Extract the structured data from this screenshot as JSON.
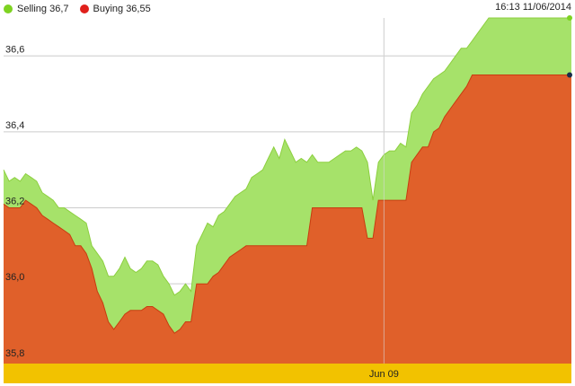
{
  "header": {
    "timestamp": "16:13 11/06/2014"
  },
  "legend": {
    "selling": {
      "label": "Selling 36,7",
      "color": "#7ed321"
    },
    "buying": {
      "label": "Buying 36,55",
      "color": "#e0201b"
    }
  },
  "colors": {
    "selling_fill": "#a6e26a",
    "selling_line": "#8ccf3f",
    "buying_fill": "#e0602a",
    "buying_line": "#c83c10",
    "timeline_band": "#f2c200",
    "grid": "#cccccc",
    "end_marker_selling": "#7ed321",
    "end_marker_buying": "#1a2e4a"
  },
  "chart_data": {
    "type": "area",
    "title": "",
    "xlabel": "",
    "ylabel": "",
    "ylim": [
      35.79,
      36.7
    ],
    "yticks": [
      35.8,
      36.0,
      36.2,
      36.4,
      36.6
    ],
    "ytick_labels": [
      "35,8",
      "36,0",
      "36,2",
      "36,4",
      "36,6"
    ],
    "x_marker_label": "Jun 09",
    "x_marker_index": 69,
    "grid": true,
    "legend_position": "top-left",
    "x": [
      0,
      1,
      2,
      3,
      4,
      5,
      6,
      7,
      8,
      9,
      10,
      11,
      12,
      13,
      14,
      15,
      16,
      17,
      18,
      19,
      20,
      21,
      22,
      23,
      24,
      25,
      26,
      27,
      28,
      29,
      30,
      31,
      32,
      33,
      34,
      35,
      36,
      37,
      38,
      39,
      40,
      41,
      42,
      43,
      44,
      45,
      46,
      47,
      48,
      49,
      50,
      51,
      52,
      53,
      54,
      55,
      56,
      57,
      58,
      59,
      60,
      61,
      62,
      63,
      64,
      65,
      66,
      67,
      68,
      69,
      70,
      71,
      72,
      73,
      74,
      75,
      76,
      77,
      78,
      79,
      80,
      81,
      82,
      83,
      84,
      85,
      86,
      87,
      88,
      89,
      90,
      91,
      92,
      93,
      94,
      95,
      96,
      97,
      98,
      99,
      100,
      101,
      102,
      103
    ],
    "series": [
      {
        "name": "Selling",
        "values": [
          36.3,
          36.27,
          36.28,
          36.27,
          36.29,
          36.28,
          36.27,
          36.24,
          36.23,
          36.22,
          36.2,
          36.2,
          36.19,
          36.18,
          36.17,
          36.16,
          36.1,
          36.08,
          36.06,
          36.02,
          36.02,
          36.04,
          36.07,
          36.04,
          36.03,
          36.04,
          36.06,
          36.06,
          36.05,
          36.02,
          36.0,
          35.97,
          35.98,
          36.0,
          35.98,
          36.1,
          36.13,
          36.16,
          36.15,
          36.18,
          36.19,
          36.21,
          36.23,
          36.24,
          36.25,
          36.28,
          36.29,
          36.3,
          36.33,
          36.36,
          36.33,
          36.38,
          36.35,
          36.32,
          36.33,
          36.32,
          36.34,
          36.32,
          36.32,
          36.32,
          36.33,
          36.34,
          36.35,
          36.35,
          36.36,
          36.35,
          36.32,
          36.22,
          36.32,
          36.34,
          36.35,
          36.35,
          36.37,
          36.36,
          36.45,
          36.47,
          36.5,
          36.52,
          36.54,
          36.55,
          36.56,
          36.58,
          36.6,
          36.62,
          36.62,
          36.64,
          36.66,
          36.68,
          36.7,
          36.7,
          36.7,
          36.7,
          36.7,
          36.7,
          36.7,
          36.7,
          36.7,
          36.7,
          36.7,
          36.7,
          36.7,
          36.7,
          36.7,
          36.7
        ]
      },
      {
        "name": "Buying",
        "values": [
          36.21,
          36.2,
          36.2,
          36.2,
          36.22,
          36.21,
          36.2,
          36.18,
          36.17,
          36.16,
          36.15,
          36.14,
          36.13,
          36.1,
          36.1,
          36.08,
          36.04,
          35.98,
          35.95,
          35.9,
          35.88,
          35.9,
          35.92,
          35.93,
          35.93,
          35.93,
          35.94,
          35.94,
          35.93,
          35.92,
          35.89,
          35.87,
          35.88,
          35.9,
          35.9,
          36.0,
          36.0,
          36.0,
          36.02,
          36.03,
          36.05,
          36.07,
          36.08,
          36.09,
          36.1,
          36.1,
          36.1,
          36.1,
          36.1,
          36.1,
          36.1,
          36.1,
          36.1,
          36.1,
          36.1,
          36.1,
          36.2,
          36.2,
          36.2,
          36.2,
          36.2,
          36.2,
          36.2,
          36.2,
          36.2,
          36.2,
          36.12,
          36.12,
          36.22,
          36.22,
          36.22,
          36.22,
          36.22,
          36.22,
          36.32,
          36.34,
          36.36,
          36.36,
          36.4,
          36.41,
          36.44,
          36.46,
          36.48,
          36.5,
          36.52,
          36.55,
          36.55,
          36.55,
          36.55,
          36.55,
          36.55,
          36.55,
          36.55,
          36.55,
          36.55,
          36.55,
          36.55,
          36.55,
          36.55,
          36.55,
          36.55,
          36.55,
          36.55,
          36.55
        ]
      }
    ]
  }
}
